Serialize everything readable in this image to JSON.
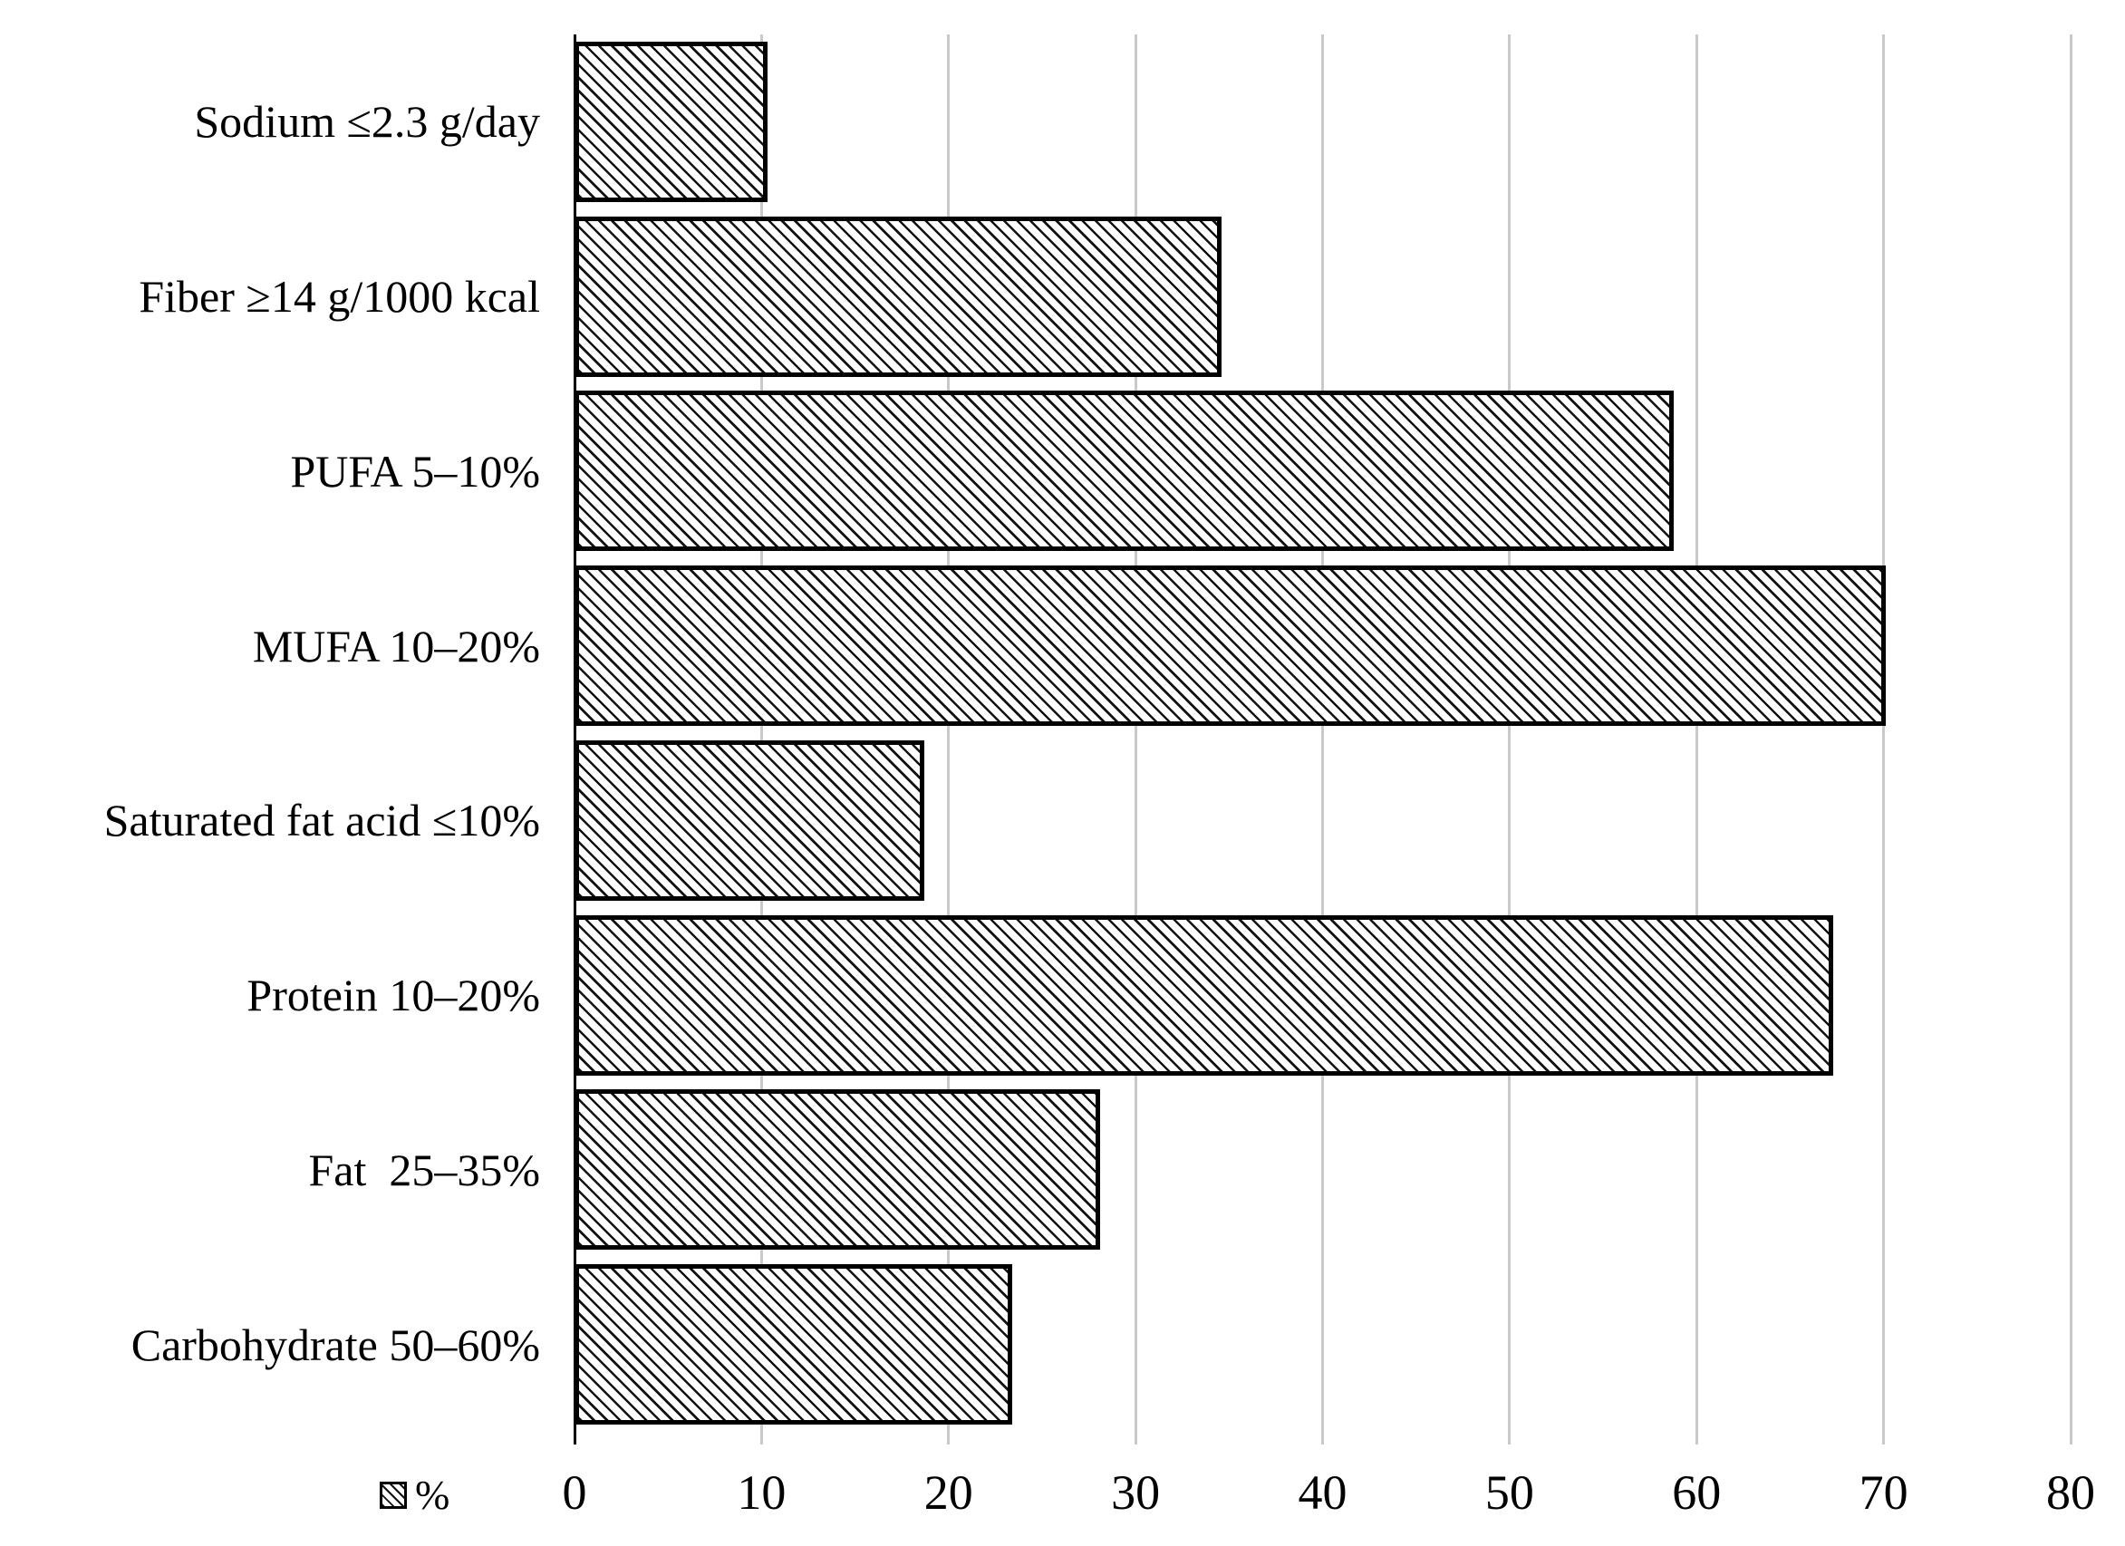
{
  "chart_data": {
    "type": "bar",
    "orientation": "horizontal",
    "title": "",
    "categories_top_to_bottom": [
      "Sodium ≤2.3 g/day",
      "Fiber ≥14 g/1000 kcal",
      "PUFA 5–10%",
      "MUFA 10–20%",
      "Saturated fat acid ≤10%",
      "Protein 10–20%",
      "Fat  25–35%",
      "Carbohydrate 50–60%"
    ],
    "values": [
      10.3,
      34.6,
      58.8,
      70.1,
      18.7,
      67.3,
      28.1,
      23.4
    ],
    "xlabel": "",
    "ylabel": "",
    "xlim": [
      0,
      80
    ],
    "xticks": [
      0,
      10,
      20,
      30,
      40,
      50,
      60,
      70,
      80
    ],
    "grid": "vertical gridlines on, horizontal off",
    "legend": {
      "position": "bottom-left",
      "label": "%",
      "swatch": "diagonal-hatch"
    },
    "bar_style": {
      "fill_pattern": "light-downward-diagonal-hatch",
      "hatch_color": "#121212",
      "fill_background": "#ffffff",
      "border_color": "#000000"
    },
    "colors": {
      "gridline": "#c9c9c9",
      "axis_line": "#000000",
      "text": "#000000",
      "background": "#ffffff"
    }
  }
}
